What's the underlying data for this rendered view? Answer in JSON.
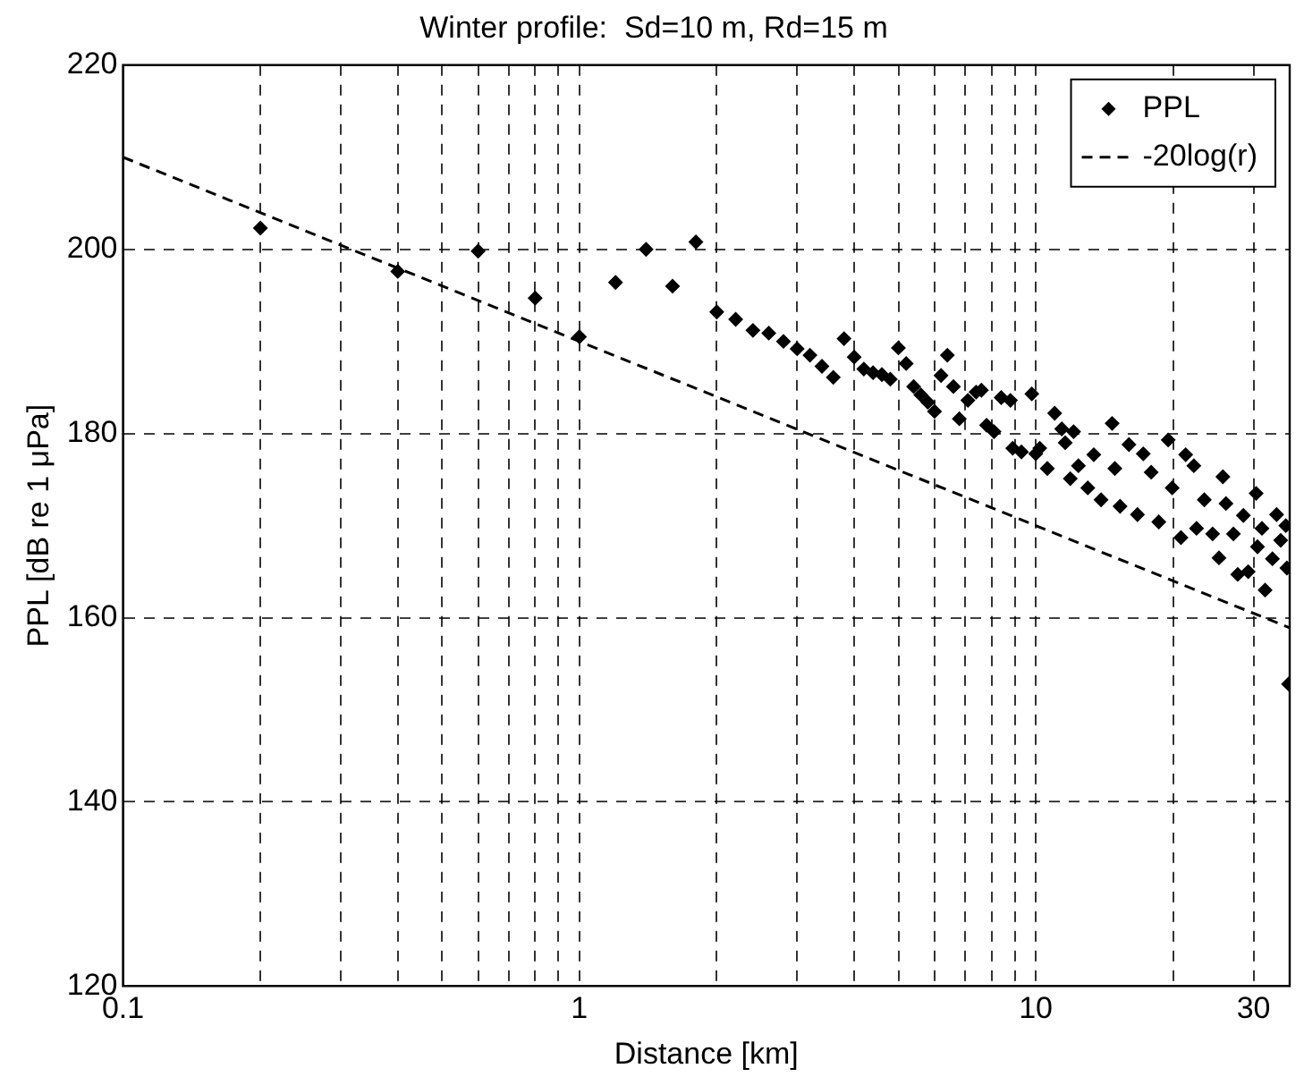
{
  "chart_data": {
    "type": "scatter",
    "title": "Winter profile:  Sd=10 m, Rd=15 m",
    "xlabel": "Distance [km]",
    "ylabel": "PPL [dB re 1 μPa]",
    "log": "x",
    "grid": true,
    "legend": "top right",
    "marker": "diamond",
    "xlim": [
      0.1,
      36
    ],
    "ylim": [
      120,
      220
    ],
    "xticks": [
      0.1,
      {
        "value": 0.2,
        "label": null
      },
      {
        "value": 0.3,
        "label": null
      },
      {
        "value": 0.4,
        "label": null
      },
      {
        "value": 0.5,
        "label": null
      },
      {
        "value": 0.6,
        "label": null
      },
      {
        "value": 0.7,
        "label": null
      },
      {
        "value": 0.8,
        "label": null
      },
      {
        "value": 0.9,
        "label": null
      },
      1,
      {
        "value": 2,
        "label": null
      },
      {
        "value": 3,
        "label": null
      },
      {
        "value": 4,
        "label": null
      },
      {
        "value": 5,
        "label": null
      },
      {
        "value": 6,
        "label": null
      },
      {
        "value": 7,
        "label": null
      },
      {
        "value": 8,
        "label": null
      },
      {
        "value": 9,
        "label": null
      },
      10,
      {
        "value": 20,
        "label": null
      },
      30
    ],
    "yticks": [
      120,
      140,
      160,
      180,
      200,
      220
    ],
    "series": [
      {
        "name": "PPL",
        "color": "#000000",
        "x": [
          0.2,
          0.4,
          0.6,
          0.8,
          1.0,
          1.2,
          1.4,
          1.6,
          1.8,
          2.0,
          2.2,
          2.4,
          2.6,
          2.8,
          3.0,
          3.2,
          3.4,
          3.6,
          3.8,
          4.0,
          4.2,
          4.4,
          4.6,
          4.8,
          5.0,
          5.2,
          5.4,
          5.6,
          5.8,
          6.0,
          6.2,
          6.4,
          6.6,
          6.8,
          7.1,
          7.4,
          7.6,
          7.8,
          8.1,
          8.4,
          8.8,
          8.9,
          9.3,
          9.8,
          10.0,
          10.2,
          10.6,
          11.0,
          11.4,
          11.6,
          12.1,
          11.9,
          12.4,
          13.0,
          13.4,
          13.9,
          14.7,
          14.9,
          15.3,
          16.0,
          16.7,
          17.2,
          17.9,
          18.6,
          19.5,
          19.9,
          20.8,
          21.3,
          22.2,
          22.5,
          23.4,
          24.4,
          25.2,
          25.7,
          26.1,
          27.1,
          27.7,
          28.5,
          29.2,
          30.4,
          30.6,
          31.3,
          31.8,
          33.0,
          33.7,
          34.4,
          35.3,
          35.5,
          35.8
        ],
        "values": [
          202.3,
          197.6,
          199.8,
          194.7,
          190.5,
          196.4,
          200,
          196,
          200.8,
          193.2,
          192.4,
          191.2,
          190.9,
          190,
          189.2,
          188.5,
          187.3,
          186.1,
          190.3,
          188.3,
          187,
          186.6,
          186.4,
          185.9,
          189.3,
          187.6,
          185.1,
          184.2,
          183.4,
          182.4,
          186.3,
          188.5,
          185.1,
          181.6,
          183.6,
          184.5,
          184.7,
          180.9,
          180.2,
          183.9,
          183.6,
          178.4,
          178,
          184.3,
          177.8,
          178.4,
          176.2,
          182.2,
          180.5,
          179,
          180.2,
          175.1,
          176.5,
          174.1,
          177.7,
          172.8,
          181.1,
          176.2,
          172.1,
          178.8,
          171.2,
          177.8,
          175.8,
          170.4,
          179.3,
          174.1,
          168.7,
          177.7,
          176.5,
          169.7,
          172.8,
          169.1,
          166.5,
          175.3,
          172.4,
          169.1,
          164.7,
          171.1,
          165,
          173.5,
          167.7,
          169.7,
          163,
          166.4,
          171.2,
          168.4,
          170,
          165.4,
          152.8
        ]
      },
      {
        "name": "-20log(r)",
        "type": "line",
        "color": "#000000",
        "line_style": "dashed",
        "marker": "none",
        "x": [
          0.1,
          1,
          10,
          36
        ],
        "values": [
          210,
          190,
          170,
          158.9
        ]
      }
    ]
  }
}
